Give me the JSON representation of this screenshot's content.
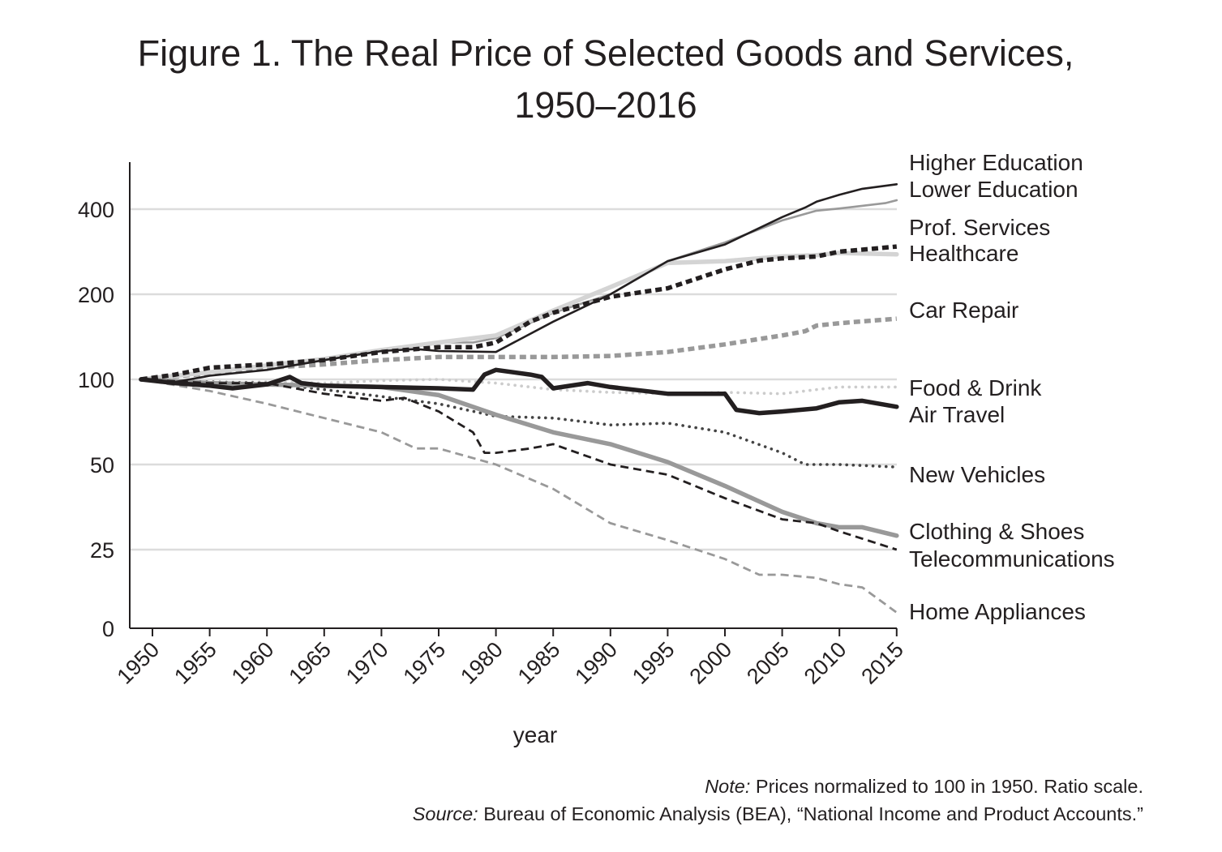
{
  "title_line1": "Figure 1. The Real Price of Selected Goods and Services,",
  "title_line2": "1950–2016",
  "footnote": {
    "note_label": "Note:",
    "note_text": " Prices normalized to 100 in 1950. Ratio scale.",
    "source_label": "Source:",
    "source_text": " Bureau of Economic Analysis (BEA), “National Income and Product Accounts.”"
  },
  "chart_data": {
    "type": "line",
    "xlabel": "year",
    "ylabel": "",
    "x_range": [
      1949,
      2015
    ],
    "y_scale": "ratio",
    "y_ticks": [
      0,
      25,
      50,
      100,
      200,
      400
    ],
    "x_ticks": [
      1950,
      1955,
      1960,
      1965,
      1970,
      1975,
      1980,
      1985,
      1990,
      1995,
      2000,
      2005,
      2010,
      2015
    ],
    "grid": "horizontal",
    "legend": "direct labels at right end of lines",
    "series_labels": [
      "Higher Education",
      "Lower Education",
      "Prof. Services",
      "Healthcare",
      "Car Repair",
      "Food & Drink",
      "Air Travel",
      "New Vehicles",
      "Clothing & Shoes",
      "Telecommunications",
      "Home Appliances"
    ],
    "series": [
      {
        "name": "Higher Education",
        "color": "#231f20",
        "style": "thin-solid",
        "points": [
          [
            1949,
            100
          ],
          [
            1952,
            98
          ],
          [
            1955,
            103
          ],
          [
            1960,
            108
          ],
          [
            1965,
            117
          ],
          [
            1970,
            126
          ],
          [
            1973,
            128
          ],
          [
            1975,
            126
          ],
          [
            1980,
            125
          ],
          [
            1985,
            160
          ],
          [
            1990,
            200
          ],
          [
            1995,
            262
          ],
          [
            2000,
            300
          ],
          [
            2005,
            375
          ],
          [
            2007,
            405
          ],
          [
            2008,
            425
          ],
          [
            2010,
            450
          ],
          [
            2012,
            472
          ],
          [
            2015,
            490
          ]
        ]
      },
      {
        "name": "Lower Education",
        "color": "#999999",
        "style": "thin-solid",
        "points": [
          [
            1949,
            100
          ],
          [
            1955,
            105
          ],
          [
            1960,
            112
          ],
          [
            1965,
            118
          ],
          [
            1970,
            128
          ],
          [
            1972,
            130
          ],
          [
            1975,
            135
          ],
          [
            1978,
            135
          ],
          [
            1980,
            140
          ],
          [
            1985,
            172
          ],
          [
            1990,
            200
          ],
          [
            1995,
            262
          ],
          [
            2000,
            305
          ],
          [
            2005,
            365
          ],
          [
            2008,
            395
          ],
          [
            2010,
            402
          ],
          [
            2014,
            420
          ],
          [
            2015,
            430
          ]
        ]
      },
      {
        "name": "Prof. Services",
        "color": "#231f20",
        "style": "thick-dashed",
        "points": [
          [
            1949,
            100
          ],
          [
            1952,
            104
          ],
          [
            1955,
            110
          ],
          [
            1960,
            113
          ],
          [
            1965,
            117
          ],
          [
            1970,
            125
          ],
          [
            1975,
            130
          ],
          [
            1978,
            130
          ],
          [
            1980,
            135
          ],
          [
            1983,
            160
          ],
          [
            1985,
            172
          ],
          [
            1990,
            196
          ],
          [
            1995,
            210
          ],
          [
            2000,
            245
          ],
          [
            2003,
            263
          ],
          [
            2005,
            268
          ],
          [
            2008,
            272
          ],
          [
            2010,
            283
          ],
          [
            2013,
            290
          ],
          [
            2015,
            295
          ]
        ]
      },
      {
        "name": "Healthcare",
        "color": "#d4d4d4",
        "style": "thick-solid",
        "points": [
          [
            1949,
            100
          ],
          [
            1955,
            106
          ],
          [
            1960,
            112
          ],
          [
            1965,
            118
          ],
          [
            1970,
            127
          ],
          [
            1975,
            135
          ],
          [
            1980,
            143
          ],
          [
            1985,
            175
          ],
          [
            1990,
            212
          ],
          [
            1995,
            258
          ],
          [
            2000,
            262
          ],
          [
            2005,
            272
          ],
          [
            2008,
            275
          ],
          [
            2010,
            280
          ],
          [
            2015,
            277
          ]
        ]
      },
      {
        "name": "Car Repair",
        "color": "#999999",
        "style": "thick-dashed",
        "points": [
          [
            1949,
            100
          ],
          [
            1955,
            105
          ],
          [
            1960,
            110
          ],
          [
            1965,
            113
          ],
          [
            1970,
            117
          ],
          [
            1975,
            120
          ],
          [
            1980,
            120
          ],
          [
            1985,
            120
          ],
          [
            1990,
            121
          ],
          [
            1995,
            125
          ],
          [
            2000,
            133
          ],
          [
            2005,
            143
          ],
          [
            2007,
            148
          ],
          [
            2008,
            155
          ],
          [
            2010,
            158
          ],
          [
            2015,
            164
          ]
        ]
      },
      {
        "name": "Food & Drink",
        "color": "#cccccc",
        "style": "dotted",
        "points": [
          [
            1949,
            100
          ],
          [
            1955,
            97
          ],
          [
            1960,
            98
          ],
          [
            1965,
            97
          ],
          [
            1970,
            99
          ],
          [
            1975,
            100
          ],
          [
            1980,
            97
          ],
          [
            1985,
            92
          ],
          [
            1990,
            90
          ],
          [
            1995,
            89
          ],
          [
            2000,
            90
          ],
          [
            2005,
            89
          ],
          [
            2008,
            92
          ],
          [
            2010,
            94
          ],
          [
            2015,
            94
          ]
        ]
      },
      {
        "name": "Air Travel",
        "color": "#231f20",
        "style": "thick-solid",
        "points": [
          [
            1949,
            100
          ],
          [
            1952,
            97
          ],
          [
            1955,
            95
          ],
          [
            1957,
            93
          ],
          [
            1960,
            96
          ],
          [
            1962,
            102
          ],
          [
            1963,
            97
          ],
          [
            1965,
            95
          ],
          [
            1970,
            94
          ],
          [
            1975,
            93
          ],
          [
            1978,
            92
          ],
          [
            1979,
            104
          ],
          [
            1980,
            108
          ],
          [
            1983,
            104
          ],
          [
            1984,
            102
          ],
          [
            1985,
            93
          ],
          [
            1988,
            97
          ],
          [
            1990,
            94
          ],
          [
            1993,
            91
          ],
          [
            1995,
            89
          ],
          [
            1998,
            89
          ],
          [
            2000,
            89
          ],
          [
            2001,
            78
          ],
          [
            2003,
            76
          ],
          [
            2005,
            77
          ],
          [
            2008,
            79
          ],
          [
            2010,
            83
          ],
          [
            2012,
            84
          ],
          [
            2015,
            80
          ]
        ]
      },
      {
        "name": "New Vehicles",
        "color": "#444444",
        "style": "dotted",
        "points": [
          [
            1949,
            100
          ],
          [
            1955,
            98
          ],
          [
            1960,
            97
          ],
          [
            1965,
            92
          ],
          [
            1970,
            87
          ],
          [
            1975,
            82
          ],
          [
            1980,
            74
          ],
          [
            1985,
            73
          ],
          [
            1990,
            69
          ],
          [
            1995,
            70
          ],
          [
            2000,
            65
          ],
          [
            2005,
            55
          ],
          [
            2007,
            50
          ],
          [
            2010,
            50
          ],
          [
            2015,
            49
          ]
        ]
      },
      {
        "name": "Clothing & Shoes",
        "color": "#999999",
        "style": "thick-solid",
        "points": [
          [
            1949,
            100
          ],
          [
            1955,
            97
          ],
          [
            1960,
            96
          ],
          [
            1965,
            95
          ],
          [
            1970,
            94
          ],
          [
            1975,
            88
          ],
          [
            1980,
            75
          ],
          [
            1985,
            65
          ],
          [
            1990,
            59
          ],
          [
            1995,
            51
          ],
          [
            2000,
            42
          ],
          [
            2005,
            34
          ],
          [
            2008,
            31
          ],
          [
            2010,
            30
          ],
          [
            2012,
            30
          ],
          [
            2015,
            28
          ]
        ]
      },
      {
        "name": "Telecommunications",
        "color": "#231f20",
        "style": "dashed",
        "points": [
          [
            1949,
            100
          ],
          [
            1955,
            97
          ],
          [
            1960,
            97
          ],
          [
            1965,
            89
          ],
          [
            1970,
            84
          ],
          [
            1972,
            86
          ],
          [
            1975,
            77
          ],
          [
            1978,
            65
          ],
          [
            1979,
            55
          ],
          [
            1980,
            55
          ],
          [
            1983,
            57
          ],
          [
            1985,
            59
          ],
          [
            1990,
            50
          ],
          [
            1995,
            46
          ],
          [
            2000,
            38
          ],
          [
            2005,
            32
          ],
          [
            2008,
            31
          ],
          [
            2010,
            29
          ],
          [
            2015,
            25
          ]
        ]
      },
      {
        "name": "Home Appliances",
        "color": "#999999",
        "style": "dashed",
        "points": [
          [
            1949,
            100
          ],
          [
            1955,
            91
          ],
          [
            1960,
            82
          ],
          [
            1965,
            73
          ],
          [
            1970,
            65
          ],
          [
            1973,
            57
          ],
          [
            1975,
            57
          ],
          [
            1980,
            50
          ],
          [
            1985,
            41
          ],
          [
            1990,
            31
          ],
          [
            1995,
            27
          ],
          [
            2000,
            22
          ],
          [
            2003,
            17
          ],
          [
            2005,
            17
          ],
          [
            2008,
            16
          ],
          [
            2010,
            14
          ],
          [
            2012,
            13
          ],
          [
            2015,
            5
          ]
        ]
      }
    ]
  }
}
